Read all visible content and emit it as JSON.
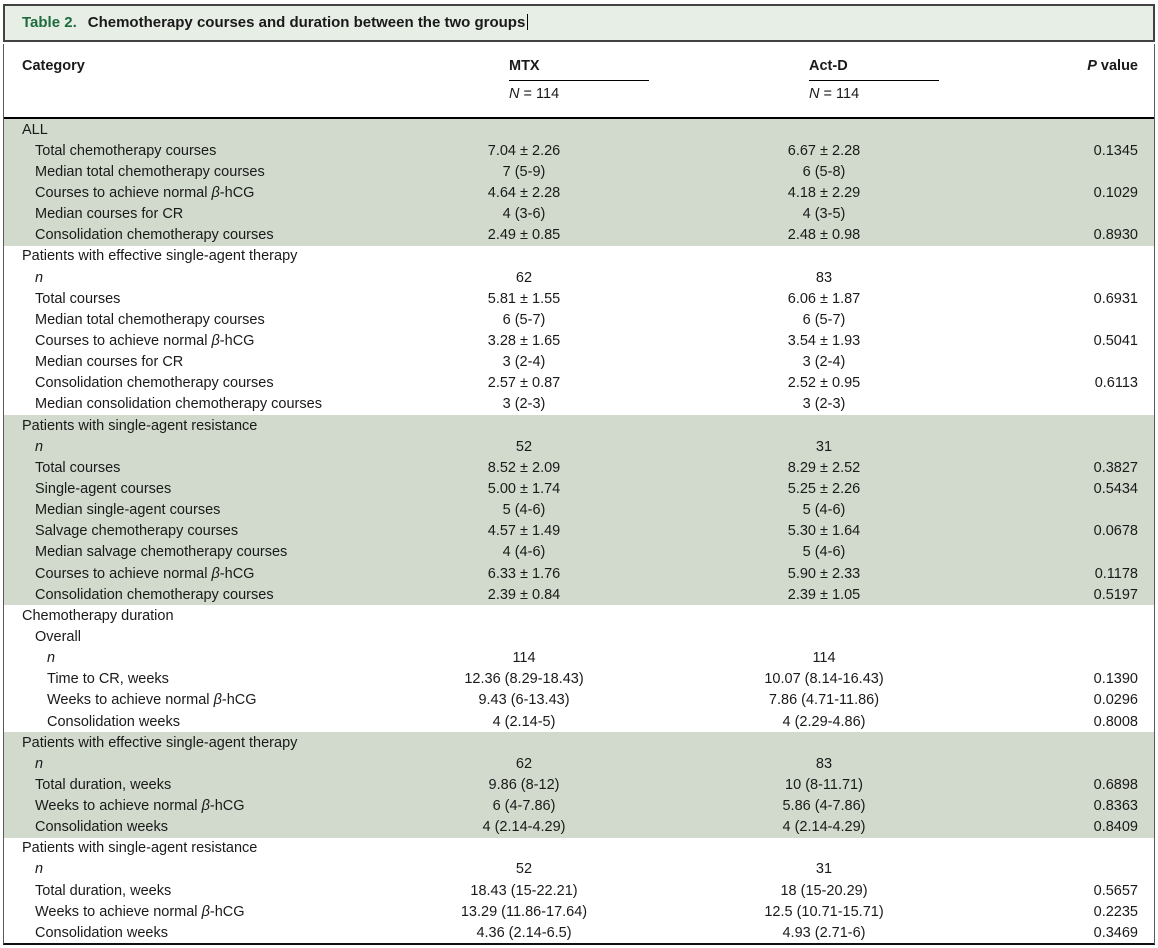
{
  "window": {
    "title_prefix": "Table 2.",
    "title_text": "Chemotherapy courses and duration between the two groups"
  },
  "header": {
    "category_label": "Category",
    "groups": [
      {
        "name": "MTX",
        "n_var": "N",
        "n_eq": "= 114"
      },
      {
        "name": "Act-D",
        "n_var": "N",
        "n_eq": "= 114"
      }
    ],
    "p_var": "P",
    "p_rest": "value"
  },
  "colors": {
    "title_bg": "#e7eee6",
    "shaded_row_bg": "#d1dacc",
    "title_prefix_green": "#1e6c3d",
    "header_rule": "#000000",
    "text": "#1a1a1a"
  },
  "table": {
    "sections": [
      {
        "shaded": true,
        "rows": [
          {
            "indent": 0,
            "label": "ALL",
            "mtx": "",
            "actd": "",
            "p": ""
          },
          {
            "indent": 1,
            "label": "Total chemotherapy courses",
            "mtx": "7.04 ± 2.26",
            "actd": "6.67 ± 2.28",
            "p": "0.1345"
          },
          {
            "indent": 1,
            "label": "Median total chemotherapy courses",
            "mtx": "7 (5-9)",
            "actd": "6 (5-8)",
            "p": ""
          },
          {
            "indent": 1,
            "label": "Courses to achieve normal β-hCG",
            "mtx": "4.64 ± 2.28",
            "actd": "4.18 ± 2.29",
            "p": "0.1029"
          },
          {
            "indent": 1,
            "label": "Median courses for CR",
            "mtx": "4 (3-6)",
            "actd": "4 (3-5)",
            "p": ""
          },
          {
            "indent": 1,
            "label": "Consolidation chemotherapy courses",
            "mtx": "2.49 ± 0.85",
            "actd": "2.48 ± 0.98",
            "p": "0.8930"
          }
        ]
      },
      {
        "shaded": false,
        "rows": [
          {
            "indent": 0,
            "label": "Patients with effective single-agent therapy",
            "mtx": "",
            "actd": "",
            "p": ""
          },
          {
            "indent": 1,
            "label": "n",
            "mtx": "62",
            "actd": "83",
            "p": ""
          },
          {
            "indent": 1,
            "label": "Total courses",
            "mtx": "5.81 ± 1.55",
            "actd": "6.06 ± 1.87",
            "p": "0.6931"
          },
          {
            "indent": 1,
            "label": "Median total chemotherapy courses",
            "mtx": "6 (5-7)",
            "actd": "6 (5-7)",
            "p": ""
          },
          {
            "indent": 1,
            "label": "Courses to achieve normal β-hCG",
            "mtx": "3.28 ± 1.65",
            "actd": "3.54 ± 1.93",
            "p": "0.5041"
          },
          {
            "indent": 1,
            "label": "Median courses for CR",
            "mtx": "3 (2-4)",
            "actd": "3 (2-4)",
            "p": ""
          },
          {
            "indent": 1,
            "label": "Consolidation chemotherapy courses",
            "mtx": "2.57 ± 0.87",
            "actd": "2.52 ± 0.95",
            "p": "0.6113"
          },
          {
            "indent": 1,
            "label": "Median consolidation chemotherapy courses",
            "mtx": "3 (2-3)",
            "actd": "3 (2-3)",
            "p": ""
          }
        ]
      },
      {
        "shaded": true,
        "rows": [
          {
            "indent": 0,
            "label": "Patients with single-agent resistance",
            "mtx": "",
            "actd": "",
            "p": ""
          },
          {
            "indent": 1,
            "label": "n",
            "mtx": "52",
            "actd": "31",
            "p": ""
          },
          {
            "indent": 1,
            "label": "Total courses",
            "mtx": "8.52 ± 2.09",
            "actd": "8.29 ± 2.52",
            "p": "0.3827"
          },
          {
            "indent": 1,
            "label": "Single-agent courses",
            "mtx": "5.00 ± 1.74",
            "actd": "5.25 ± 2.26",
            "p": "0.5434"
          },
          {
            "indent": 1,
            "label": "Median single-agent courses",
            "mtx": "5 (4-6)",
            "actd": "5 (4-6)",
            "p": ""
          },
          {
            "indent": 1,
            "label": "Salvage chemotherapy courses",
            "mtx": "4.57 ± 1.49",
            "actd": "5.30 ± 1.64",
            "p": "0.0678"
          },
          {
            "indent": 1,
            "label": "Median salvage chemotherapy courses",
            "mtx": "4 (4-6)",
            "actd": "5 (4-6)",
            "p": ""
          },
          {
            "indent": 1,
            "label": "Courses to achieve normal β-hCG",
            "mtx": "6.33 ± 1.76",
            "actd": "5.90 ± 2.33",
            "p": "0.1178"
          },
          {
            "indent": 1,
            "label": "Consolidation chemotherapy courses",
            "mtx": "2.39 ± 0.84",
            "actd": "2.39 ± 1.05",
            "p": "0.5197"
          }
        ]
      },
      {
        "shaded": false,
        "rows": [
          {
            "indent": 0,
            "label": "Chemotherapy duration",
            "mtx": "",
            "actd": "",
            "p": ""
          },
          {
            "indent": 1,
            "label": "Overall",
            "mtx": "",
            "actd": "",
            "p": ""
          },
          {
            "indent": 2,
            "label": "n",
            "mtx": "114",
            "actd": "114",
            "p": ""
          },
          {
            "indent": 2,
            "label": "Time to CR, weeks",
            "mtx": "12.36 (8.29-18.43)",
            "actd": "10.07 (8.14-16.43)",
            "p": "0.1390"
          },
          {
            "indent": 2,
            "label": "Weeks to achieve normal β-hCG",
            "mtx": "9.43 (6-13.43)",
            "actd": "7.86 (4.71-11.86)",
            "p": "0.0296"
          },
          {
            "indent": 2,
            "label": "Consolidation weeks",
            "mtx": "4 (2.14-5)",
            "actd": "4 (2.29-4.86)",
            "p": "0.8008"
          }
        ]
      },
      {
        "shaded": true,
        "rows": [
          {
            "indent": 0,
            "label": "Patients with effective single-agent therapy",
            "mtx": "",
            "actd": "",
            "p": ""
          },
          {
            "indent": 1,
            "label": "n",
            "mtx": "62",
            "actd": "83",
            "p": ""
          },
          {
            "indent": 1,
            "label": "Total duration, weeks",
            "mtx": "9.86 (8-12)",
            "actd": "10 (8-11.71)",
            "p": "0.6898"
          },
          {
            "indent": 1,
            "label": "Weeks to achieve normal β-hCG",
            "mtx": "6 (4-7.86)",
            "actd": "5.86 (4-7.86)",
            "p": "0.8363"
          },
          {
            "indent": 1,
            "label": "Consolidation weeks",
            "mtx": "4 (2.14-4.29)",
            "actd": "4 (2.14-4.29)",
            "p": "0.8409"
          }
        ]
      },
      {
        "shaded": false,
        "rows": [
          {
            "indent": 0,
            "label": "Patients with single-agent resistance",
            "mtx": "",
            "actd": "",
            "p": ""
          },
          {
            "indent": 1,
            "label": "n",
            "mtx": "52",
            "actd": "31",
            "p": ""
          },
          {
            "indent": 1,
            "label": "Total duration, weeks",
            "mtx": "18.43 (15-22.21)",
            "actd": "18 (15-20.29)",
            "p": "0.5657"
          },
          {
            "indent": 1,
            "label": "Weeks to achieve normal β-hCG",
            "mtx": "13.29 (11.86-17.64)",
            "actd": "12.5 (10.71-15.71)",
            "p": "0.2235"
          },
          {
            "indent": 1,
            "label": "Consolidation weeks",
            "mtx": "4.36 (2.14-6.5)",
            "actd": "4.93 (2.71-6)",
            "p": "0.3469"
          }
        ]
      }
    ]
  }
}
